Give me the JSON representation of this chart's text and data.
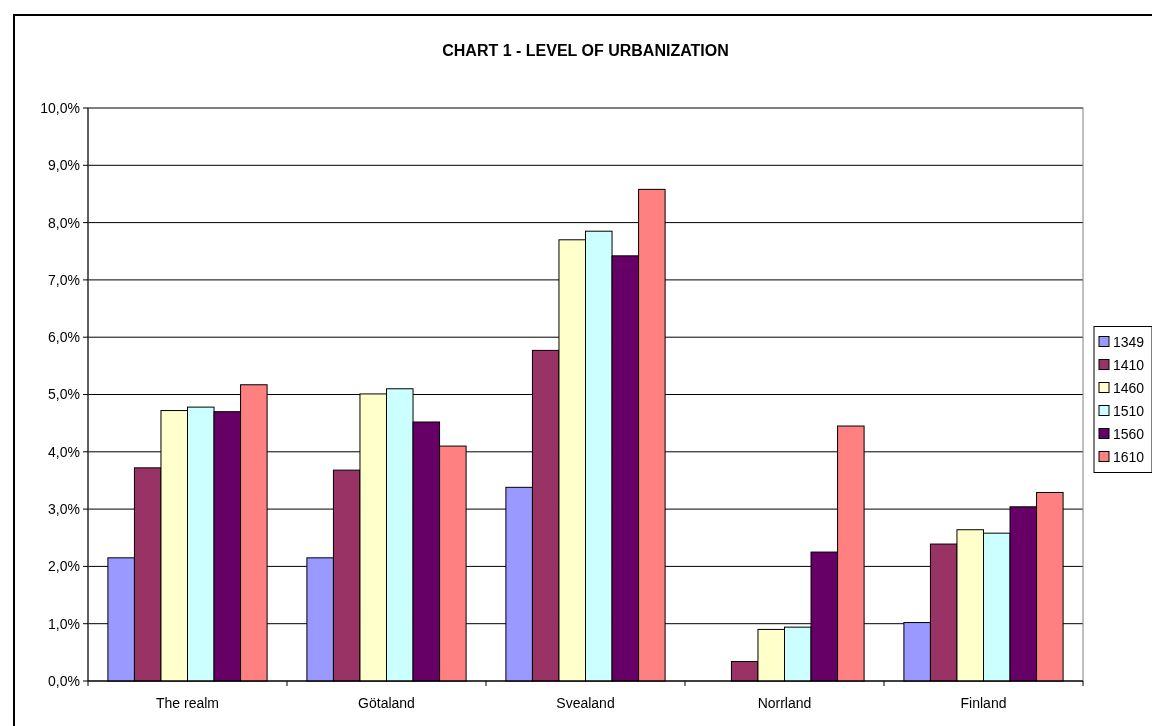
{
  "chart_data": {
    "type": "bar",
    "title": "CHART 1 - LEVEL OF URBANIZATION",
    "categories": [
      "The realm",
      "Götaland",
      "Svealand",
      "Norrland",
      "Finland"
    ],
    "series": [
      {
        "name": "1349",
        "color": "#9999ff",
        "values": [
          2.15,
          2.15,
          3.38,
          null,
          1.02
        ]
      },
      {
        "name": "1410",
        "color": "#993366",
        "values": [
          3.72,
          3.68,
          5.77,
          0.34,
          2.39
        ]
      },
      {
        "name": "1460",
        "color": "#ffffcc",
        "values": [
          4.72,
          5.01,
          7.7,
          0.9,
          2.64
        ]
      },
      {
        "name": "1510",
        "color": "#ccffff",
        "values": [
          4.78,
          5.1,
          7.85,
          0.94,
          2.58
        ]
      },
      {
        "name": "1560",
        "color": "#660066",
        "values": [
          4.7,
          4.52,
          7.42,
          2.25,
          3.04
        ]
      },
      {
        "name": "1610",
        "color": "#ff8080",
        "values": [
          5.17,
          4.1,
          8.58,
          4.45,
          3.29
        ]
      }
    ],
    "ylim": [
      0,
      10
    ],
    "yticks": [
      {
        "value": 0,
        "label": "0,0%"
      },
      {
        "value": 1,
        "label": "1,0%"
      },
      {
        "value": 2,
        "label": "2,0%"
      },
      {
        "value": 3,
        "label": "3,0%"
      },
      {
        "value": 4,
        "label": "4,0%"
      },
      {
        "value": 5,
        "label": "5,0%"
      },
      {
        "value": 6,
        "label": "6,0%"
      },
      {
        "value": 7,
        "label": "7,0%"
      },
      {
        "value": 8,
        "label": "8,0%"
      },
      {
        "value": 9,
        "label": "9,0%"
      },
      {
        "value": 10,
        "label": "10,0%"
      }
    ],
    "grid": "y",
    "legend": "right"
  }
}
